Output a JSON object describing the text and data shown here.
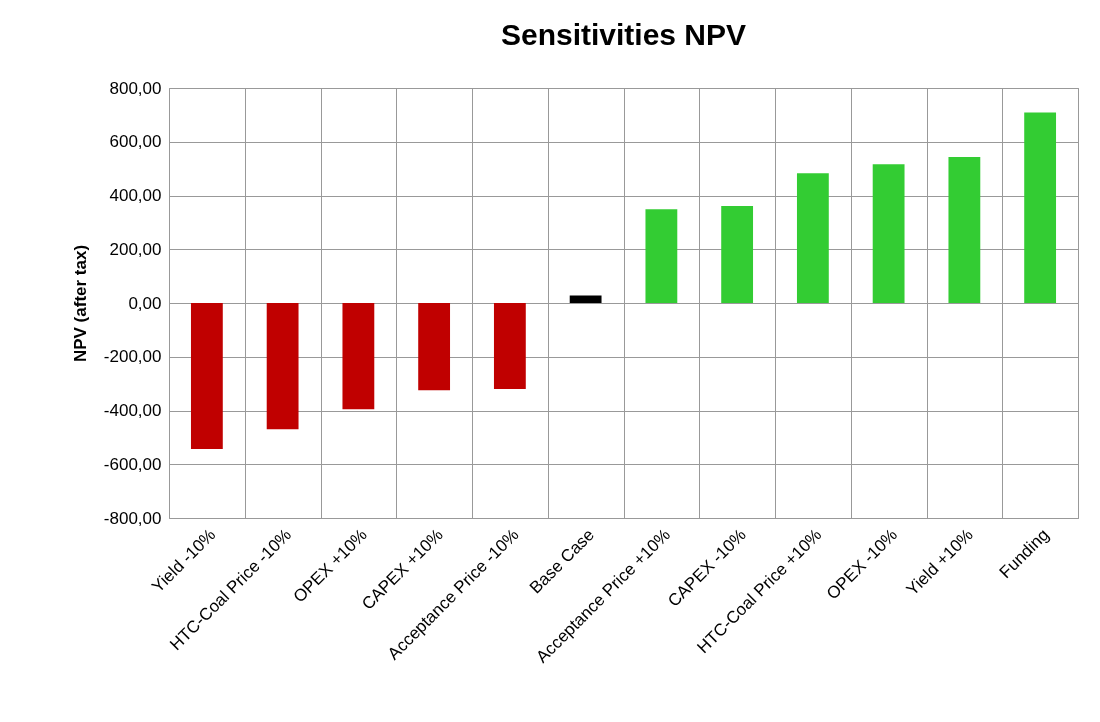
{
  "chart_data": {
    "type": "bar",
    "title": "Sensitivities NPV",
    "ylabel": "NPV (after tax)",
    "categories": [
      "Yield -10%",
      "HTC-Coal Price -10%",
      "OPEX +10%",
      "CAPEX +10%",
      "Acceptance Price -10%",
      "Base Case",
      "Acceptance Price +10%",
      "CAPEX -10%",
      "HTC-Coal Price +10%",
      "OPEX -10%",
      "Yield +10%",
      "Funding"
    ],
    "values": [
      -543,
      -470,
      -395,
      -325,
      -320,
      28,
      349,
      361,
      483,
      516,
      543,
      709
    ],
    "colors": [
      "#c00000",
      "#c00000",
      "#c00000",
      "#c00000",
      "#c00000",
      "#000000",
      "#33cc33",
      "#33cc33",
      "#33cc33",
      "#33cc33",
      "#33cc33",
      "#33cc33"
    ],
    "ylim": [
      -800,
      800
    ],
    "yticks": [
      {
        "value": -800,
        "label": "-800,00"
      },
      {
        "value": -600,
        "label": "-600,00"
      },
      {
        "value": -400,
        "label": "-400,00"
      },
      {
        "value": -200,
        "label": "-200,00"
      },
      {
        "value": 0,
        "label": "0,00"
      },
      {
        "value": 200,
        "label": "200,00"
      },
      {
        "value": 400,
        "label": "400,00"
      },
      {
        "value": 600,
        "label": "600,00"
      },
      {
        "value": 800,
        "label": "800,00"
      }
    ],
    "grid": true
  }
}
